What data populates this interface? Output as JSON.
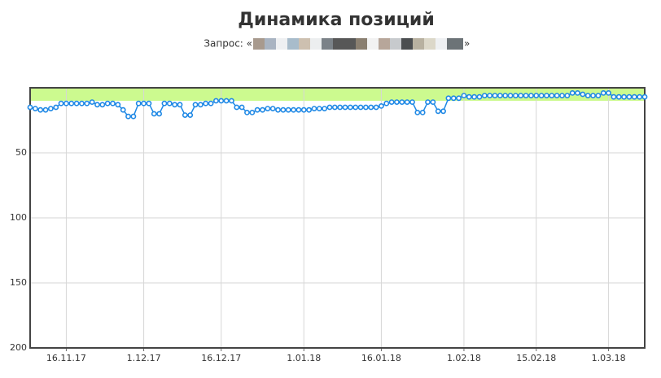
{
  "chart_data": {
    "type": "line",
    "title": "Динамика позиций",
    "query_prefix": "Запрос: «",
    "query_suffix": "»",
    "x": [
      "9.11.17",
      "10.11.17",
      "11.11.17",
      "12.11.17",
      "13.11.17",
      "14.11.17",
      "15.11.17",
      "16.11.17",
      "17.11.17",
      "18.11.17",
      "19.11.17",
      "20.11.17",
      "21.11.17",
      "22.11.17",
      "23.11.17",
      "24.11.17",
      "25.11.17",
      "26.11.17",
      "27.11.17",
      "28.11.17",
      "29.11.17",
      "30.11.17",
      "1.12.17",
      "2.12.17",
      "3.12.17",
      "4.12.17",
      "5.12.17",
      "6.12.17",
      "7.12.17",
      "8.12.17",
      "9.12.17",
      "10.12.17",
      "11.12.17",
      "12.12.17",
      "13.12.17",
      "14.12.17",
      "15.12.17",
      "16.12.17",
      "17.12.17",
      "18.12.17",
      "19.12.17",
      "20.12.17",
      "21.12.17",
      "22.12.17",
      "23.12.17",
      "24.12.17",
      "25.12.17",
      "26.12.17",
      "27.12.17",
      "28.12.17",
      "29.12.17",
      "30.12.17",
      "31.12.17",
      "1.01.18",
      "2.01.18",
      "3.01.18",
      "4.01.18",
      "5.01.18",
      "6.01.18",
      "7.01.18",
      "8.01.18",
      "9.01.18",
      "10.01.18",
      "11.01.18",
      "12.01.18",
      "13.01.18",
      "14.01.18",
      "15.01.18",
      "16.01.18",
      "17.01.18",
      "18.01.18",
      "19.01.18",
      "20.01.18",
      "21.01.18",
      "22.01.18",
      "23.01.18",
      "24.01.18",
      "25.01.18",
      "26.01.18",
      "27.01.18",
      "28.01.18",
      "29.01.18",
      "30.01.18",
      "31.01.18",
      "1.02.18",
      "2.02.18",
      "3.02.18",
      "4.02.18",
      "5.02.18",
      "6.02.18",
      "7.02.18",
      "8.02.18",
      "9.02.18",
      "10.02.18",
      "11.02.18",
      "12.02.18",
      "13.02.18",
      "14.02.18",
      "15.02.18",
      "16.02.18",
      "17.02.18",
      "18.02.18",
      "19.02.18",
      "20.02.18",
      "21.02.18",
      "22.02.18",
      "23.02.18",
      "24.02.18",
      "25.02.18",
      "26.02.18",
      "27.02.18",
      "28.02.18",
      "1.03.18",
      "2.03.18",
      "3.03.18",
      "4.03.18",
      "5.03.18",
      "6.03.18",
      "7.03.18",
      "8.03.18"
    ],
    "values": [
      15,
      16,
      17,
      17,
      16,
      15,
      12,
      12,
      12,
      12,
      12,
      12,
      11,
      13,
      13,
      12,
      12,
      13,
      17,
      22,
      22,
      12,
      12,
      12,
      20,
      20,
      12,
      12,
      13,
      13,
      21,
      21,
      13,
      13,
      12,
      12,
      10,
      10,
      10,
      10,
      15,
      15,
      19,
      19,
      17,
      17,
      16,
      16,
      17,
      17,
      17,
      17,
      17,
      17,
      17,
      16,
      16,
      16,
      15,
      15,
      15,
      15,
      15,
      15,
      15,
      15,
      15,
      15,
      14,
      12,
      11,
      11,
      11,
      11,
      11,
      19,
      19,
      11,
      11,
      18,
      18,
      8,
      8,
      8,
      6,
      7,
      7,
      7,
      6,
      6,
      6,
      6,
      6,
      6,
      6,
      6,
      6,
      6,
      6,
      6,
      6,
      6,
      6,
      6,
      6,
      4,
      4,
      5,
      6,
      6,
      6,
      4,
      4,
      7,
      7,
      7,
      7,
      7,
      7,
      7
    ],
    "color": "#1e88e5",
    "xlim": [
      "9.11.17",
      "8.03.18"
    ],
    "xticks": [
      "16.11.17",
      "1.12.17",
      "16.12.17",
      "1.01.18",
      "16.01.18",
      "1.02.18",
      "15.02.18",
      "1.03.18"
    ],
    "ylim": [
      0,
      200
    ],
    "yticks": [
      50,
      100,
      150,
      200
    ],
    "y_inverted": true,
    "grid": true,
    "band": {
      "range": [
        0,
        10
      ],
      "color": "#ccfa8f"
    }
  }
}
